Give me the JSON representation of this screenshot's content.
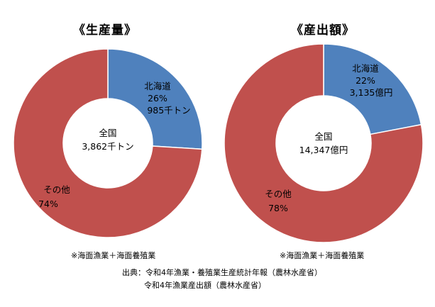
{
  "chart_data": [
    {
      "type": "pie",
      "variant": "donut",
      "title": "《生産量》",
      "center_label": [
        "全国",
        "3,862千トン"
      ],
      "slices": [
        {
          "name": "北海道",
          "percent": 26,
          "value_label": "985千トン",
          "color": "#4f81bd"
        },
        {
          "name": "その他",
          "percent": 74,
          "value_label": "",
          "color": "#c0504d"
        }
      ],
      "note": "※海面漁業＋海面養殖業"
    },
    {
      "type": "pie",
      "variant": "donut",
      "title": "《産出額》",
      "center_label": [
        "全国",
        "14,347億円"
      ],
      "slices": [
        {
          "name": "北海道",
          "percent": 22,
          "value_label": "3,135億円",
          "color": "#4f81bd"
        },
        {
          "name": "その他",
          "percent": 78,
          "value_label": "",
          "color": "#c0504d"
        }
      ],
      "note": "※海面漁業＋海面養殖業"
    }
  ],
  "source": {
    "line1": "出典：令和4年漁業・養殖業生産統計年報（農林水産省）",
    "line2": "令和4年漁業産出額（農林水産省）"
  }
}
